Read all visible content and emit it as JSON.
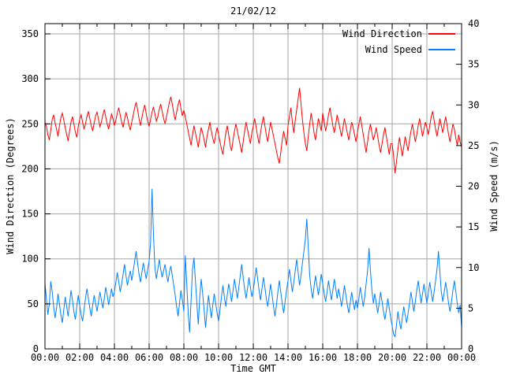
{
  "title": "21/02/12",
  "colors": {
    "background": "#ffffff",
    "grid": "#a6a6a6",
    "border": "#000000",
    "wind_direction": "#ff0000",
    "wind_speed": "#0080ff"
  },
  "legend": [
    {
      "label": "Wind Direction",
      "color": "#ff0000"
    },
    {
      "label": "Wind Speed",
      "color": "#0080ff"
    }
  ],
  "axes": {
    "x": {
      "label": "Time GMT",
      "ticks": [
        "00:00",
        "02:00",
        "04:00",
        "06:00",
        "08:00",
        "10:00",
        "12:00",
        "14:00",
        "16:00",
        "18:00",
        "20:00",
        "22:00",
        "00:00"
      ],
      "minor_tick_interval_hours": 1
    },
    "y_left": {
      "label": "Wind Direction (Degrees)",
      "ticks": [
        "0",
        "50",
        "100",
        "150",
        "200",
        "250",
        "300",
        "350"
      ]
    },
    "y_right": {
      "label": "Wind Speed (m/s)",
      "ticks": [
        "0",
        "5",
        "10",
        "15",
        "20",
        "25",
        "30",
        "35",
        "40"
      ]
    }
  },
  "chart_data": {
    "type": "line",
    "title": "21/02/12",
    "xlabel": "Time GMT",
    "x_start_hour": 0,
    "x_end_hour": 24,
    "x_interval_minutes": 5,
    "grid": true,
    "legend_position": "top-right-inside",
    "y_left_label": "Wind Direction (Degrees)",
    "y_left_ticks": [
      0,
      50,
      100,
      150,
      200,
      250,
      300,
      350
    ],
    "y_left_range": [
      0,
      361.6
    ],
    "y_right_label": "Wind Speed (m/s)",
    "y_right_ticks": [
      0,
      5,
      10,
      15,
      20,
      25,
      30,
      35,
      40
    ],
    "y_right_range": [
      0,
      40
    ],
    "series": [
      {
        "name": "Wind Direction",
        "axis": "left",
        "unit": "degrees",
        "color": "#ff0000",
        "values": [
          252,
          247,
          238,
          232,
          243,
          255,
          260,
          251,
          244,
          236,
          248,
          257,
          262,
          254,
          246,
          238,
          231,
          242,
          252,
          258,
          250,
          241,
          235,
          247,
          255,
          260,
          252,
          244,
          250,
          258,
          264,
          256,
          248,
          242,
          251,
          259,
          263,
          255,
          247,
          252,
          260,
          266,
          258,
          250,
          244,
          253,
          261,
          256,
          248,
          254,
          262,
          268,
          260,
          252,
          246,
          255,
          263,
          257,
          249,
          243,
          252,
          260,
          268,
          274,
          266,
          256,
          248,
          257,
          265,
          271,
          261,
          253,
          247,
          255,
          263,
          269,
          261,
          253,
          258,
          266,
          272,
          264,
          256,
          250,
          258,
          266,
          274,
          280,
          272,
          262,
          254,
          263,
          271,
          277,
          267,
          259,
          265,
          258,
          250,
          242,
          234,
          226,
          238,
          248,
          240,
          232,
          224,
          236,
          246,
          240,
          232,
          224,
          236,
          244,
          252,
          242,
          234,
          228,
          238,
          246,
          238,
          230,
          222,
          216,
          228,
          240,
          248,
          238,
          226,
          220,
          232,
          242,
          250,
          242,
          234,
          226,
          218,
          230,
          242,
          252,
          244,
          236,
          228,
          240,
          248,
          256,
          246,
          236,
          228,
          240,
          250,
          258,
          248,
          238,
          230,
          242,
          252,
          244,
          236,
          228,
          220,
          212,
          206,
          218,
          232,
          242,
          234,
          226,
          248,
          258,
          268,
          252,
          240,
          254,
          266,
          278,
          290,
          272,
          254,
          240,
          228,
          220,
          236,
          250,
          262,
          252,
          240,
          232,
          244,
          256,
          250,
          242,
          262,
          252,
          242,
          250,
          260,
          268,
          258,
          248,
          240,
          250,
          260,
          252,
          244,
          236,
          246,
          256,
          248,
          240,
          232,
          242,
          252,
          246,
          238,
          230,
          240,
          250,
          258,
          248,
          238,
          228,
          218,
          230,
          242,
          250,
          240,
          232,
          238,
          246,
          236,
          226,
          218,
          228,
          238,
          246,
          236,
          226,
          216,
          228,
          228,
          214,
          195,
          208,
          222,
          235,
          225,
          214,
          224,
          236,
          228,
          220,
          232,
          242,
          250,
          240,
          230,
          238,
          248,
          256,
          246,
          236,
          244,
          252,
          246,
          238,
          248,
          258,
          264,
          254,
          244,
          236,
          246,
          256,
          248,
          240,
          250,
          258,
          248,
          238,
          230,
          240,
          250,
          244,
          234,
          226,
          238,
          230,
          224
        ]
      },
      {
        "name": "Wind Speed",
        "axis": "right",
        "unit": "m/s",
        "color": "#0080ff",
        "values": [
          8,
          6.2,
          4.2,
          5.5,
          8.3,
          7,
          5.2,
          3.8,
          5,
          6.8,
          5.5,
          4.2,
          3.2,
          4.8,
          6.4,
          5.2,
          4,
          5.6,
          7.2,
          6,
          4.6,
          3.6,
          5.2,
          6.6,
          5.4,
          4.2,
          3.4,
          4.8,
          6.2,
          7.4,
          6.2,
          5,
          4,
          5.4,
          6.6,
          5.6,
          4.6,
          5.8,
          7,
          6,
          5,
          6.2,
          7.6,
          6.6,
          5.4,
          6.4,
          7.4,
          6.4,
          7,
          8.2,
          9.4,
          8.2,
          7,
          8,
          9.2,
          10.4,
          9,
          7.8,
          8.8,
          9.6,
          8.4,
          9.6,
          10.8,
          12,
          10.6,
          9.2,
          8.2,
          9.4,
          10.6,
          9.6,
          8.6,
          9.8,
          10.8,
          13,
          19.7,
          14,
          10,
          8.6,
          9.8,
          11,
          9.8,
          8.8,
          9.6,
          10.4,
          9.2,
          8.2,
          9.4,
          10.2,
          9,
          7.8,
          6.6,
          5.2,
          4,
          5.6,
          7.2,
          6,
          4.6,
          11.5,
          8,
          4.4,
          2,
          6,
          9.8,
          11.2,
          8.4,
          5.6,
          3,
          6.4,
          8.6,
          6.8,
          4.8,
          2.6,
          4.6,
          6.6,
          5.2,
          3.8,
          5.4,
          6.8,
          5.6,
          4.4,
          3.4,
          4.8,
          6.4,
          7.8,
          6.4,
          5.2,
          6.6,
          8,
          7,
          5.8,
          7.2,
          8.6,
          7.4,
          6.2,
          7.6,
          9,
          10.4,
          8.8,
          7.4,
          6.2,
          7.4,
          8.8,
          7.6,
          6.4,
          7.2,
          8.6,
          10,
          8.6,
          7.2,
          6,
          7.4,
          8.8,
          7.6,
          6.2,
          5.2,
          6.6,
          8,
          6.6,
          5.2,
          4,
          5.4,
          7,
          8.4,
          7,
          5.6,
          4.4,
          5.8,
          7.2,
          8.4,
          9.8,
          8.4,
          7,
          8.2,
          9.6,
          11,
          9.4,
          7.8,
          9,
          10.6,
          12,
          13.5,
          16,
          12.5,
          9,
          7.4,
          6.2,
          7.6,
          9,
          7.8,
          6.6,
          7.8,
          9.2,
          8,
          6.8,
          5.8,
          7,
          8.4,
          7.2,
          6,
          7.2,
          8.6,
          7.4,
          6.2,
          7.4,
          6.4,
          5.2,
          6.4,
          7.8,
          6.6,
          5.4,
          4.4,
          5.6,
          7,
          5.8,
          4.8,
          6,
          5,
          6.2,
          7.6,
          6.4,
          5.2,
          6.4,
          8,
          9.6,
          12.4,
          9.6,
          7.2,
          5.6,
          6.8,
          5.6,
          4.4,
          5.6,
          7,
          5.8,
          4.6,
          3.6,
          4.8,
          6.2,
          5,
          3.8,
          2.8,
          1.8,
          1.5,
          3,
          4.6,
          3.4,
          2.4,
          3.8,
          5.2,
          4.2,
          3.2,
          4.4,
          5.6,
          7,
          5.8,
          4.6,
          5.8,
          7.2,
          8.4,
          7,
          5.6,
          6.8,
          8,
          6.8,
          5.6,
          6.8,
          8.2,
          7,
          5.8,
          7,
          8.4,
          9.8,
          12,
          9.4,
          7,
          5.8,
          7,
          8.2,
          7,
          5.6,
          4.6,
          5.8,
          7.2,
          8.4,
          7,
          5.6,
          4.4,
          5.4,
          2.6
        ]
      }
    ]
  }
}
